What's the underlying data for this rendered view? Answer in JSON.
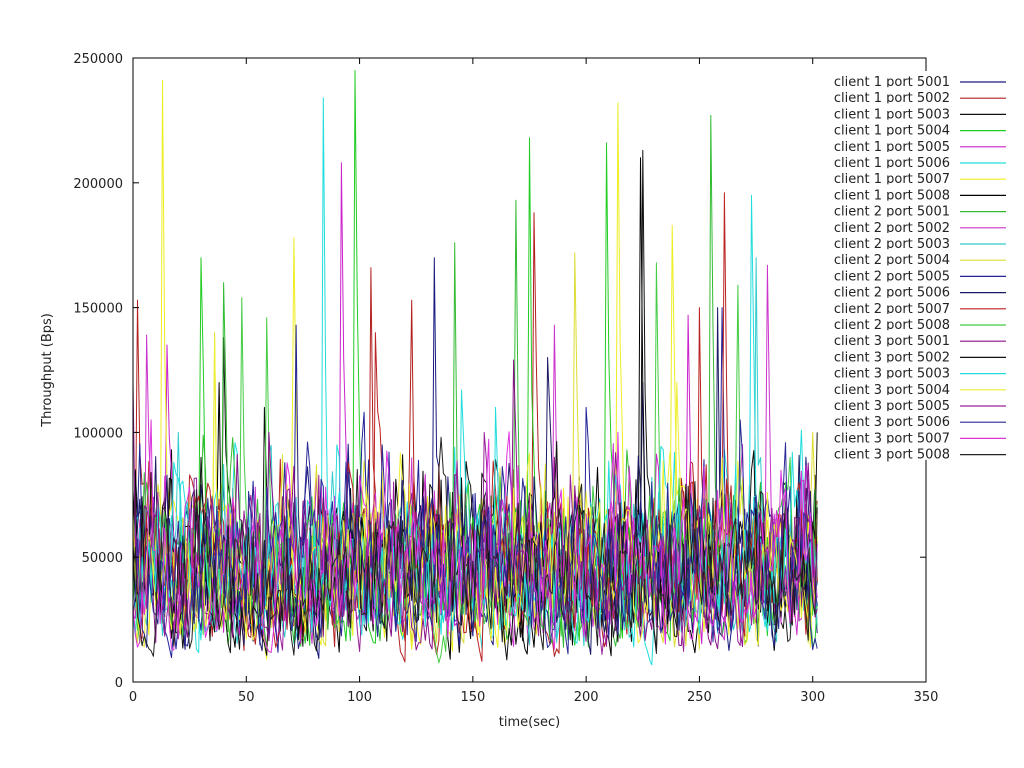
{
  "chart_data": {
    "type": "line",
    "title": "",
    "xlabel": "time(sec)",
    "ylabel": "Throughput (Bps)",
    "xlim": [
      0,
      350
    ],
    "ylim": [
      0,
      250000
    ],
    "x_ticks": [
      "0",
      "50",
      "100",
      "150",
      "200",
      "250",
      "300",
      "350"
    ],
    "y_ticks": [
      "0",
      "50000",
      "100000",
      "150000",
      "200000",
      "250000"
    ],
    "legend_position": "top-right",
    "grid": false,
    "x_range_data": [
      0,
      302
    ],
    "series": [
      {
        "name": "client 1 port 5001",
        "color": "#1a1a80",
        "peaks": [
          [
            133,
            170000
          ],
          [
            225,
            120000
          ]
        ]
      },
      {
        "name": "client 1 port 5002",
        "color": "#b32020",
        "peaks": [
          [
            2,
            153000
          ],
          [
            105,
            166000
          ],
          [
            177,
            188000
          ],
          [
            123,
            153000
          ]
        ]
      },
      {
        "name": "client 1 port 5003",
        "color": "#101010",
        "peaks": [
          [
            40,
            138000
          ],
          [
            225,
            213000
          ],
          [
            58,
            110000
          ]
        ]
      },
      {
        "name": "client 1 port 5004",
        "color": "#22cc22",
        "peaks": [
          [
            98,
            245000
          ],
          [
            30,
            170000
          ],
          [
            209,
            216000
          ],
          [
            175,
            218000
          ]
        ]
      },
      {
        "name": "client 1 port 5005",
        "color": "#cc22cc",
        "peaks": [
          [
            92,
            208000
          ],
          [
            15,
            135000
          ],
          [
            245,
            147000
          ]
        ]
      },
      {
        "name": "client 1 port 5006",
        "color": "#22dddd",
        "peaks": [
          [
            84,
            234000
          ],
          [
            273,
            195000
          ],
          [
            145,
            117000
          ]
        ]
      },
      {
        "name": "client 1 port 5007",
        "color": "#eeee22",
        "peaks": [
          [
            13,
            241000
          ],
          [
            214,
            232000
          ],
          [
            71,
            178000
          ],
          [
            238,
            183000
          ]
        ]
      },
      {
        "name": "client 1 port 5008",
        "color": "#000000",
        "peaks": [
          [
            224,
            210000
          ],
          [
            38,
            120000
          ]
        ]
      },
      {
        "name": "client 2 port 5001",
        "color": "#33bb33",
        "peaks": [
          [
            255,
            227000
          ],
          [
            169,
            193000
          ],
          [
            142,
            176000
          ],
          [
            40,
            160000
          ]
        ]
      },
      {
        "name": "client 2 port 5002",
        "color": "#cc33cc",
        "peaks": [
          [
            6,
            139000
          ],
          [
            186,
            143000
          ],
          [
            280,
            167000
          ]
        ]
      },
      {
        "name": "client 2 port 5003",
        "color": "#33cccc",
        "peaks": [
          [
            275,
            170000
          ],
          [
            20,
            100000
          ]
        ]
      },
      {
        "name": "client 2 port 5004",
        "color": "#dddd33",
        "peaks": [
          [
            195,
            172000
          ],
          [
            36,
            140000
          ],
          [
            300,
            100000
          ]
        ]
      },
      {
        "name": "client 2 port 5005",
        "color": "#222299",
        "peaks": [
          [
            72,
            143000
          ],
          [
            260,
            150000
          ],
          [
            200,
            110000
          ]
        ]
      },
      {
        "name": "client 2 port 5006",
        "color": "#1a1a66",
        "peaks": [
          [
            258,
            150000
          ],
          [
            183,
            130000
          ]
        ]
      },
      {
        "name": "client 2 port 5007",
        "color": "#bb2222",
        "peaks": [
          [
            261,
            196000
          ],
          [
            250,
            150000
          ],
          [
            107,
            140000
          ]
        ]
      },
      {
        "name": "client 2 port 5008",
        "color": "#44cc44",
        "peaks": [
          [
            48,
            154000
          ],
          [
            59,
            146000
          ],
          [
            231,
            168000
          ],
          [
            267,
            159000
          ]
        ]
      },
      {
        "name": "client 3 port 5001",
        "color": "#881188",
        "peaks": [
          [
            168,
            129000
          ],
          [
            60,
            100000
          ]
        ]
      },
      {
        "name": "client 3 port 5002",
        "color": "#111111",
        "peaks": [
          [
            302,
            100000
          ],
          [
            30,
            90000
          ]
        ]
      },
      {
        "name": "client 3 port 5003",
        "color": "#22dddd",
        "peaks": [
          [
            160,
            110000
          ],
          [
            90,
            95000
          ]
        ]
      },
      {
        "name": "client 3 port 5004",
        "color": "#eeee33",
        "peaks": [
          [
            36,
            138000
          ],
          [
            240,
            120000
          ]
        ]
      },
      {
        "name": "client 3 port 5005",
        "color": "#992299",
        "peaks": [
          [
            0,
            120000
          ],
          [
            155,
            100000
          ]
        ]
      },
      {
        "name": "client 3 port 5006",
        "color": "#2a2a99",
        "peaks": [
          [
            110,
            95000
          ],
          [
            268,
            105000
          ]
        ]
      },
      {
        "name": "client 3 port 5007",
        "color": "#dd33dd",
        "peaks": [
          [
            8,
            105000
          ],
          [
            214,
            100000
          ]
        ]
      },
      {
        "name": "client 3 port 5008",
        "color": "#222222",
        "peaks": [
          [
            302,
            70000
          ],
          [
            135,
            85000
          ]
        ]
      }
    ]
  }
}
